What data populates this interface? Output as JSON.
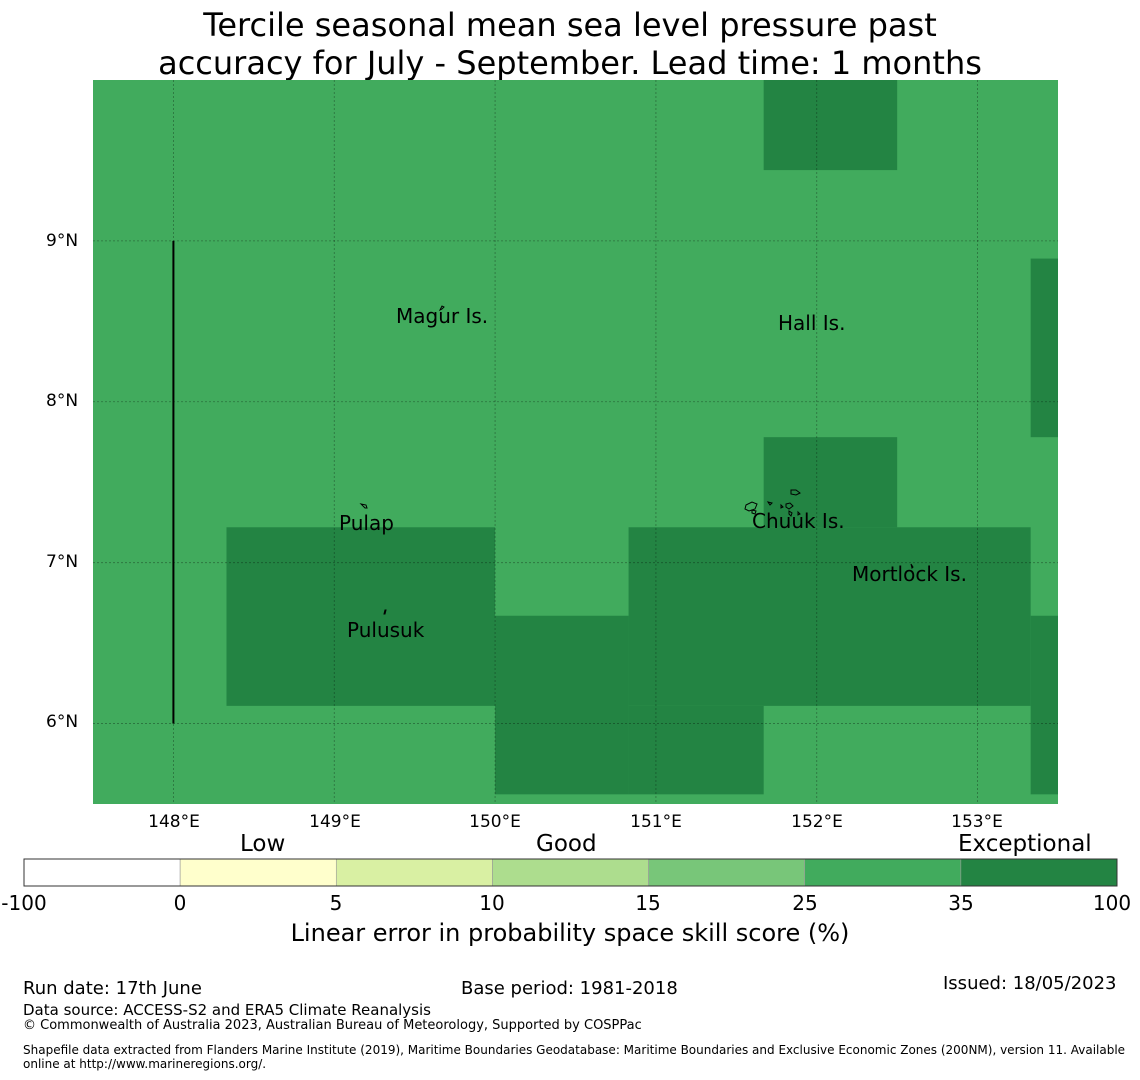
{
  "title": {
    "line1": "Tercile seasonal mean sea level pressure past",
    "line2": "accuracy for July - September. Lead time: 1 months"
  },
  "map": {
    "lon_range": [
      147.5,
      153.5
    ],
    "lat_range": [
      5.5,
      10.0
    ],
    "x_ticks": [
      "148°E",
      "149°E",
      "150°E",
      "151°E",
      "152°E",
      "153°E"
    ],
    "y_ticks": [
      "9°N",
      "8°N",
      "7°N",
      "6°N"
    ],
    "grid": true,
    "colors": {
      "band_25_35": "#41ab5d",
      "band_35_100": "#238443",
      "coast": "#000000",
      "boundary_line": "#000000"
    },
    "base_band": "25-35",
    "exceptional_cells": [
      {
        "lon": [
          151.67,
          152.5
        ],
        "lat": [
          9.44,
          10.0
        ]
      },
      {
        "lon": [
          153.33,
          153.5
        ],
        "lat": [
          7.78,
          8.89
        ]
      },
      {
        "lon": [
          151.67,
          152.5
        ],
        "lat": [
          7.22,
          7.78
        ]
      },
      {
        "lon": [
          148.33,
          150.0
        ],
        "lat": [
          6.11,
          7.22
        ]
      },
      {
        "lon": [
          150.83,
          153.33
        ],
        "lat": [
          6.11,
          7.22
        ]
      },
      {
        "lon": [
          150.0,
          150.83
        ],
        "lat": [
          5.56,
          6.67
        ]
      },
      {
        "lon": [
          150.83,
          151.67
        ],
        "lat": [
          5.56,
          6.11
        ]
      },
      {
        "lon": [
          153.33,
          153.5
        ],
        "lat": [
          5.56,
          6.67
        ]
      }
    ],
    "boundary_segment": {
      "lon": 148.0,
      "lat": [
        6.0,
        9.0
      ]
    },
    "places": [
      {
        "name": "Magur Is.",
        "lon": 149.73,
        "lat": 8.53
      },
      {
        "name": "Hall Is.",
        "lon": 151.98,
        "lat": 8.48
      },
      {
        "name": "Pulap",
        "lon": 149.21,
        "lat": 7.24
      },
      {
        "name": "Chuuk Is.",
        "lon": 151.9,
        "lat": 7.25
      },
      {
        "name": "Mortlock Is.",
        "lon": 152.59,
        "lat": 6.92
      },
      {
        "name": "Pulusuk",
        "lon": 149.33,
        "lat": 6.58
      }
    ]
  },
  "colorbar": {
    "categories": [
      "Low",
      "Good",
      "Exceptional"
    ],
    "ticks": [
      "-100",
      "0",
      "5",
      "10",
      "15",
      "25",
      "35",
      "100"
    ],
    "colors": [
      "#ffffff",
      "#ffffcc",
      "#d9f0a3",
      "#addd8e",
      "#78c679",
      "#41ab5d",
      "#238443"
    ],
    "label": "Linear error in probability space skill score (%)"
  },
  "footer": {
    "run_date": "Run date: 17th June",
    "base_period": "Base period: 1981-2018",
    "issued": "Issued: 18/05/2023",
    "data_source": "Data source: ACCESS-S2 and ERA5 Climate Reanalysis",
    "copyright": "© Commonwealth of Australia 2023, Australian Bureau of Meteorology, Supported by COSPPac",
    "shapefile_line1": "Shapefile data extracted from Flanders Marine Institute (2019), Maritime Boundaries Geodatabase: Maritime Boundaries and Exclusive Economic Zones (200NM), version 11. Available",
    "shapefile_line2": "online at http://www.marineregions.org/."
  }
}
